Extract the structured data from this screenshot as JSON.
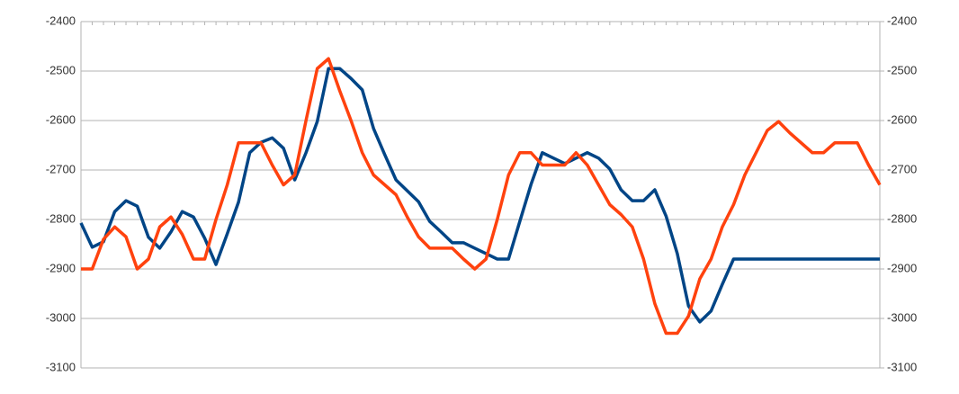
{
  "chart_data": {
    "type": "line",
    "categories": [
      null,
      null,
      null,
      null,
      null,
      null,
      null,
      null,
      null,
      null,
      null,
      null,
      null,
      null,
      null,
      null,
      null,
      null,
      null,
      null,
      null,
      null,
      null,
      null,
      null,
      null,
      null,
      null,
      null,
      null,
      null,
      null,
      null,
      null,
      null,
      null,
      null,
      null,
      null,
      null,
      null,
      null,
      null,
      null,
      null,
      null,
      null,
      null,
      null,
      null,
      null,
      null,
      null,
      null,
      null,
      null,
      null,
      null,
      null,
      null,
      null,
      null,
      null,
      null,
      null,
      null,
      null,
      null,
      null,
      null,
      null,
      null
    ],
    "series": [
      {
        "color": "#004586",
        "values": [
          -2807,
          -2856,
          -2845,
          -2784,
          -2762,
          -2773,
          -2836,
          -2858,
          -2825,
          -2784,
          -2795,
          -2838,
          -2891,
          -2829,
          -2765,
          -2665,
          -2644,
          -2635,
          -2656,
          -2720,
          -2665,
          -2602,
          -2495,
          -2495,
          -2515,
          -2538,
          -2616,
          -2669,
          -2720,
          -2742,
          -2764,
          -2804,
          -2825,
          -2847,
          -2847,
          -2858,
          -2869,
          -2880,
          -2880,
          -2804,
          -2729,
          -2665,
          -2676,
          -2687,
          -2676,
          -2665,
          -2676,
          -2698,
          -2740,
          -2762,
          -2762,
          -2740,
          -2793,
          -2869,
          -2975,
          -3007,
          -2985,
          -2931,
          -2880,
          -2880,
          -2880,
          -2880,
          -2880,
          -2880,
          -2880,
          -2880,
          -2880,
          -2880,
          -2880,
          -2880,
          -2880,
          -2880
        ]
      },
      {
        "color": "#ff420e",
        "axis": "y2",
        "values": [
          -2900,
          -2900,
          -2840,
          -2815,
          -2835,
          -2900,
          -2880,
          -2815,
          -2795,
          -2830,
          -2880,
          -2880,
          -2800,
          -2730,
          -2645,
          -2645,
          -2645,
          -2690,
          -2730,
          -2710,
          -2600,
          -2495,
          -2475,
          -2540,
          -2600,
          -2665,
          -2710,
          -2730,
          -2750,
          -2795,
          -2835,
          -2858,
          -2858,
          -2858,
          -2880,
          -2900,
          -2880,
          -2800,
          -2710,
          -2665,
          -2665,
          -2690,
          -2690,
          -2690,
          -2665,
          -2690,
          -2730,
          -2770,
          -2790,
          -2815,
          -2880,
          -2970,
          -3030,
          -3030,
          -2995,
          -2920,
          -2880,
          -2815,
          -2770,
          -2710,
          -2665,
          -2620,
          -2602,
          -2625,
          -2645,
          -2665,
          -2665,
          -2645,
          -2645,
          -2645,
          -2690,
          -2730
        ]
      }
    ],
    "ylim": [
      -3100,
      -2400
    ],
    "yticks": [
      -2400,
      -2500,
      -2600,
      -2700,
      -2800,
      -2900,
      -3000,
      -3100
    ],
    "y2lim": [
      -3100,
      -2400
    ],
    "y2ticks": [
      -2400,
      -2500,
      -2600,
      -2700,
      -2800,
      -2900,
      -3000,
      -3100
    ],
    "grid": true
  }
}
